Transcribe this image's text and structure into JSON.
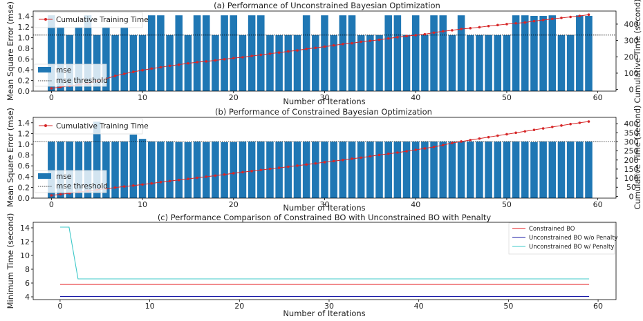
{
  "chart_data": [
    {
      "type": "bar",
      "title": "(a) Performance of Unconstrained Bayesian Optimization",
      "xlabel": "Number of Iterations",
      "ylabel": "Mean Square Error (mse)",
      "ylabel_right": "Cumulative Time (second)",
      "xlim": [
        -2,
        62
      ],
      "ylim": [
        0,
        1.5
      ],
      "ylim_right": [
        -10,
        480
      ],
      "x_ticks": [
        0,
        10,
        20,
        30,
        40,
        50,
        60
      ],
      "y_ticks": [
        0.0,
        0.2,
        0.4,
        0.6,
        0.8,
        1.0,
        1.2,
        1.4
      ],
      "y_ticks_right": [
        0,
        100,
        200,
        300,
        400
      ],
      "threshold": 1.05,
      "bar_color": "#1f77b4",
      "line_color": "#d62728",
      "legend": {
        "bars": "mse",
        "threshold": "mse threshold",
        "line": "Cumulative Training Time"
      },
      "series": [
        {
          "name": "mse",
          "values": [
            1.42,
            1.2,
            1.05,
            1.2,
            1.42,
            1.05,
            1.2,
            1.05,
            1.2,
            1.05,
            1.05,
            1.42,
            1.42,
            1.05,
            1.42,
            1.05,
            1.42,
            1.42,
            1.05,
            1.42,
            1.42,
            1.05,
            1.42,
            1.42,
            1.05,
            1.05,
            1.05,
            1.05,
            1.42,
            1.05,
            1.42,
            1.05,
            1.42,
            1.42,
            1.05,
            1.05,
            1.05,
            1.42,
            1.42,
            1.05,
            1.42,
            1.05,
            1.42,
            1.42,
            1.05,
            1.42,
            1.05,
            1.05,
            1.05,
            1.05,
            1.05,
            1.42,
            1.42,
            1.41,
            1.41,
            1.42,
            1.05,
            1.05,
            1.42,
            1.41
          ]
        },
        {
          "name": "Cumulative Training Time",
          "values": [
            7,
            15,
            22,
            30,
            37,
            52,
            66,
            83,
            96,
            108,
            118,
            128,
            136,
            145,
            152,
            160,
            167,
            172,
            178,
            185,
            192,
            197,
            205,
            212,
            219,
            226,
            233,
            239,
            248,
            255,
            262,
            270,
            278,
            283,
            292,
            298,
            304,
            312,
            320,
            327,
            332,
            338,
            348,
            356,
            362,
            370,
            375,
            381,
            388,
            394,
            400,
            405,
            410,
            418,
            425,
            432,
            438,
            444,
            450,
            458
          ]
        }
      ]
    },
    {
      "type": "bar",
      "title": "(b) Performance of Constrained Bayesian Optimization",
      "xlabel": "Number of Iterations",
      "ylabel": "Mean Square Error (mse)",
      "ylabel_right": "Cumulative Time (second)",
      "xlim": [
        -2,
        62
      ],
      "ylim": [
        0,
        1.5
      ],
      "ylim_right": [
        -10,
        435
      ],
      "x_ticks": [
        0,
        10,
        20,
        30,
        40,
        50,
        60
      ],
      "y_ticks": [
        0.0,
        0.2,
        0.4,
        0.6,
        0.8,
        1.0,
        1.2,
        1.4
      ],
      "y_ticks_right": [
        0,
        50,
        100,
        150,
        200,
        250,
        300,
        350,
        400
      ],
      "threshold": 1.05,
      "bar_color": "#1f77b4",
      "line_color": "#d62728",
      "legend": {
        "bars": "mse",
        "threshold": "mse threshold",
        "line": "Cumulative Training Time"
      },
      "series": [
        {
          "name": "mse",
          "values": [
            1.05,
            1.05,
            1.05,
            1.05,
            1.05,
            1.42,
            1.05,
            1.05,
            1.05,
            1.18,
            1.1,
            1.05,
            1.05,
            1.05,
            1.04,
            1.04,
            1.05,
            1.04,
            1.05,
            1.04,
            1.04,
            1.05,
            1.05,
            1.05,
            1.05,
            1.05,
            1.05,
            1.05,
            1.05,
            1.05,
            1.05,
            1.05,
            1.05,
            1.05,
            1.05,
            1.05,
            1.05,
            1.05,
            1.05,
            1.05,
            1.05,
            1.05,
            1.05,
            1.05,
            1.05,
            1.05,
            1.05,
            1.05,
            1.05,
            1.05,
            1.05,
            1.05,
            1.05,
            1.04,
            1.05,
            1.05,
            1.05,
            1.05,
            1.05,
            1.05
          ]
        },
        {
          "name": "Cumulative Training Time",
          "values": [
            5,
            11,
            17,
            24,
            30,
            36,
            42,
            48,
            54,
            59,
            65,
            71,
            78,
            84,
            90,
            96,
            102,
            108,
            114,
            120,
            127,
            133,
            139,
            145,
            151,
            157,
            163,
            169,
            175,
            181,
            188,
            194,
            200,
            207,
            213,
            220,
            228,
            234,
            241,
            248,
            256,
            264,
            272,
            282,
            294,
            302,
            310,
            318,
            326,
            334,
            342,
            350,
            358,
            366,
            374,
            382,
            390,
            398,
            405,
            412
          ]
        }
      ]
    },
    {
      "type": "line",
      "title": "(c) Performance Comparison of Constrained BO with Unconstrained BO with Penalty",
      "xlabel": "Number of Iterations",
      "ylabel": "Minimum Time (second)",
      "xlim": [
        -3,
        62
      ],
      "ylim": [
        3.6,
        14.8
      ],
      "x_ticks": [
        0,
        10,
        20,
        30,
        40,
        50,
        60
      ],
      "y_ticks": [
        4,
        6,
        8,
        10,
        12,
        14
      ],
      "legend_position": "top-right",
      "series": [
        {
          "name": "Constrained BO",
          "color": "#e41a1c",
          "x": [
            0,
            59
          ],
          "y": [
            5.8,
            5.8
          ]
        },
        {
          "name": "Unconstrained BO w/o Penalty",
          "color": "#1a1aa6",
          "x": [
            0,
            59
          ],
          "y": [
            4.05,
            4.05
          ]
        },
        {
          "name": "Unconstrained BO w/ Penalty",
          "color": "#3cc8c8",
          "x": [
            0,
            1,
            2,
            59
          ],
          "y": [
            14.1,
            14.1,
            6.6,
            6.6
          ]
        }
      ]
    }
  ]
}
